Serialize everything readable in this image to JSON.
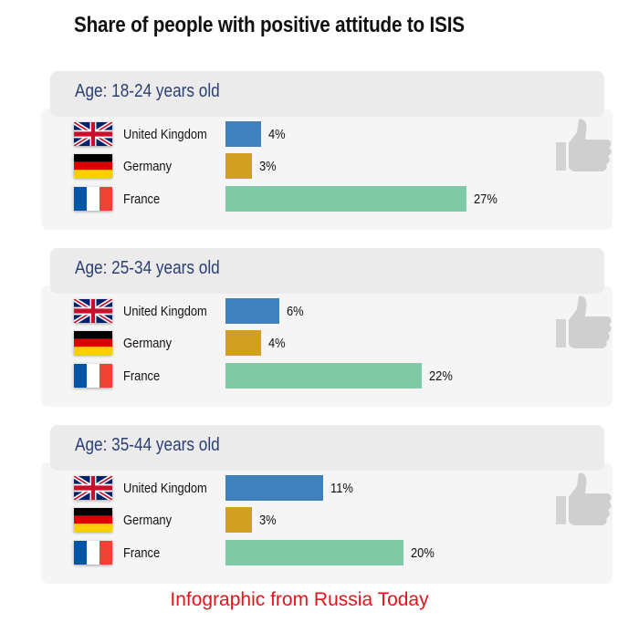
{
  "title": "Share of people with positive attitude to ISIS",
  "footer": "Infographic from Russia Today",
  "colors": {
    "uk_bar": "#3f80bf",
    "germany_bar": "#d19f22",
    "france_bar": "#7fc9a7"
  },
  "icons": {
    "uk": "uk-flag-icon",
    "germany": "germany-flag-icon",
    "france": "france-flag-icon",
    "panel": "thumbs-up-icon"
  },
  "chart_data": {
    "type": "bar",
    "orientation": "horizontal",
    "title": "Share of people with positive attitude to ISIS",
    "unit": "%",
    "categories": [
      "United Kingdom",
      "Germany",
      "France"
    ],
    "groups": [
      {
        "label": "Age: 18-24 years old",
        "values": [
          4,
          3,
          27
        ],
        "labels": [
          "4%",
          "3%",
          "27%"
        ]
      },
      {
        "label": "Age: 25-34 years old",
        "values": [
          6,
          4,
          22
        ],
        "labels": [
          "6%",
          "4%",
          "22%"
        ]
      },
      {
        "label": "Age: 35-44 years old",
        "values": [
          11,
          3,
          20
        ],
        "labels": [
          "11%",
          "3%",
          "20%"
        ]
      }
    ]
  }
}
